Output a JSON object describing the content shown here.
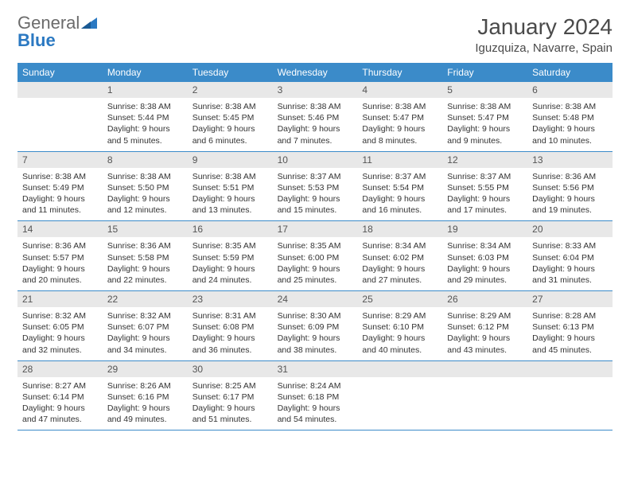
{
  "logo": {
    "word1": "General",
    "word2": "Blue"
  },
  "title": "January 2024",
  "location": "Iguzquiza, Navarre, Spain",
  "colors": {
    "header_bg": "#3b8bc9",
    "header_text": "#ffffff",
    "daynum_bg": "#e8e8e8",
    "body_text": "#333333",
    "rule": "#3b8bc9",
    "logo_gray": "#6b6b6b",
    "logo_blue": "#2b79c2"
  },
  "typography": {
    "title_fontsize": 28,
    "location_fontsize": 15,
    "dayheader_fontsize": 12,
    "daynum_fontsize": 12,
    "cell_fontsize": 10.5
  },
  "layout": {
    "columns": 7,
    "rows": 5
  },
  "day_names": [
    "Sunday",
    "Monday",
    "Tuesday",
    "Wednesday",
    "Thursday",
    "Friday",
    "Saturday"
  ],
  "weeks": [
    [
      {
        "n": "",
        "empty": true
      },
      {
        "n": "1",
        "sunrise": "Sunrise: 8:38 AM",
        "sunset": "Sunset: 5:44 PM",
        "dl1": "Daylight: 9 hours",
        "dl2": "and 5 minutes."
      },
      {
        "n": "2",
        "sunrise": "Sunrise: 8:38 AM",
        "sunset": "Sunset: 5:45 PM",
        "dl1": "Daylight: 9 hours",
        "dl2": "and 6 minutes."
      },
      {
        "n": "3",
        "sunrise": "Sunrise: 8:38 AM",
        "sunset": "Sunset: 5:46 PM",
        "dl1": "Daylight: 9 hours",
        "dl2": "and 7 minutes."
      },
      {
        "n": "4",
        "sunrise": "Sunrise: 8:38 AM",
        "sunset": "Sunset: 5:47 PM",
        "dl1": "Daylight: 9 hours",
        "dl2": "and 8 minutes."
      },
      {
        "n": "5",
        "sunrise": "Sunrise: 8:38 AM",
        "sunset": "Sunset: 5:47 PM",
        "dl1": "Daylight: 9 hours",
        "dl2": "and 9 minutes."
      },
      {
        "n": "6",
        "sunrise": "Sunrise: 8:38 AM",
        "sunset": "Sunset: 5:48 PM",
        "dl1": "Daylight: 9 hours",
        "dl2": "and 10 minutes."
      }
    ],
    [
      {
        "n": "7",
        "sunrise": "Sunrise: 8:38 AM",
        "sunset": "Sunset: 5:49 PM",
        "dl1": "Daylight: 9 hours",
        "dl2": "and 11 minutes."
      },
      {
        "n": "8",
        "sunrise": "Sunrise: 8:38 AM",
        "sunset": "Sunset: 5:50 PM",
        "dl1": "Daylight: 9 hours",
        "dl2": "and 12 minutes."
      },
      {
        "n": "9",
        "sunrise": "Sunrise: 8:38 AM",
        "sunset": "Sunset: 5:51 PM",
        "dl1": "Daylight: 9 hours",
        "dl2": "and 13 minutes."
      },
      {
        "n": "10",
        "sunrise": "Sunrise: 8:37 AM",
        "sunset": "Sunset: 5:53 PM",
        "dl1": "Daylight: 9 hours",
        "dl2": "and 15 minutes."
      },
      {
        "n": "11",
        "sunrise": "Sunrise: 8:37 AM",
        "sunset": "Sunset: 5:54 PM",
        "dl1": "Daylight: 9 hours",
        "dl2": "and 16 minutes."
      },
      {
        "n": "12",
        "sunrise": "Sunrise: 8:37 AM",
        "sunset": "Sunset: 5:55 PM",
        "dl1": "Daylight: 9 hours",
        "dl2": "and 17 minutes."
      },
      {
        "n": "13",
        "sunrise": "Sunrise: 8:36 AM",
        "sunset": "Sunset: 5:56 PM",
        "dl1": "Daylight: 9 hours",
        "dl2": "and 19 minutes."
      }
    ],
    [
      {
        "n": "14",
        "sunrise": "Sunrise: 8:36 AM",
        "sunset": "Sunset: 5:57 PM",
        "dl1": "Daylight: 9 hours",
        "dl2": "and 20 minutes."
      },
      {
        "n": "15",
        "sunrise": "Sunrise: 8:36 AM",
        "sunset": "Sunset: 5:58 PM",
        "dl1": "Daylight: 9 hours",
        "dl2": "and 22 minutes."
      },
      {
        "n": "16",
        "sunrise": "Sunrise: 8:35 AM",
        "sunset": "Sunset: 5:59 PM",
        "dl1": "Daylight: 9 hours",
        "dl2": "and 24 minutes."
      },
      {
        "n": "17",
        "sunrise": "Sunrise: 8:35 AM",
        "sunset": "Sunset: 6:00 PM",
        "dl1": "Daylight: 9 hours",
        "dl2": "and 25 minutes."
      },
      {
        "n": "18",
        "sunrise": "Sunrise: 8:34 AM",
        "sunset": "Sunset: 6:02 PM",
        "dl1": "Daylight: 9 hours",
        "dl2": "and 27 minutes."
      },
      {
        "n": "19",
        "sunrise": "Sunrise: 8:34 AM",
        "sunset": "Sunset: 6:03 PM",
        "dl1": "Daylight: 9 hours",
        "dl2": "and 29 minutes."
      },
      {
        "n": "20",
        "sunrise": "Sunrise: 8:33 AM",
        "sunset": "Sunset: 6:04 PM",
        "dl1": "Daylight: 9 hours",
        "dl2": "and 31 minutes."
      }
    ],
    [
      {
        "n": "21",
        "sunrise": "Sunrise: 8:32 AM",
        "sunset": "Sunset: 6:05 PM",
        "dl1": "Daylight: 9 hours",
        "dl2": "and 32 minutes."
      },
      {
        "n": "22",
        "sunrise": "Sunrise: 8:32 AM",
        "sunset": "Sunset: 6:07 PM",
        "dl1": "Daylight: 9 hours",
        "dl2": "and 34 minutes."
      },
      {
        "n": "23",
        "sunrise": "Sunrise: 8:31 AM",
        "sunset": "Sunset: 6:08 PM",
        "dl1": "Daylight: 9 hours",
        "dl2": "and 36 minutes."
      },
      {
        "n": "24",
        "sunrise": "Sunrise: 8:30 AM",
        "sunset": "Sunset: 6:09 PM",
        "dl1": "Daylight: 9 hours",
        "dl2": "and 38 minutes."
      },
      {
        "n": "25",
        "sunrise": "Sunrise: 8:29 AM",
        "sunset": "Sunset: 6:10 PM",
        "dl1": "Daylight: 9 hours",
        "dl2": "and 40 minutes."
      },
      {
        "n": "26",
        "sunrise": "Sunrise: 8:29 AM",
        "sunset": "Sunset: 6:12 PM",
        "dl1": "Daylight: 9 hours",
        "dl2": "and 43 minutes."
      },
      {
        "n": "27",
        "sunrise": "Sunrise: 8:28 AM",
        "sunset": "Sunset: 6:13 PM",
        "dl1": "Daylight: 9 hours",
        "dl2": "and 45 minutes."
      }
    ],
    [
      {
        "n": "28",
        "sunrise": "Sunrise: 8:27 AM",
        "sunset": "Sunset: 6:14 PM",
        "dl1": "Daylight: 9 hours",
        "dl2": "and 47 minutes."
      },
      {
        "n": "29",
        "sunrise": "Sunrise: 8:26 AM",
        "sunset": "Sunset: 6:16 PM",
        "dl1": "Daylight: 9 hours",
        "dl2": "and 49 minutes."
      },
      {
        "n": "30",
        "sunrise": "Sunrise: 8:25 AM",
        "sunset": "Sunset: 6:17 PM",
        "dl1": "Daylight: 9 hours",
        "dl2": "and 51 minutes."
      },
      {
        "n": "31",
        "sunrise": "Sunrise: 8:24 AM",
        "sunset": "Sunset: 6:18 PM",
        "dl1": "Daylight: 9 hours",
        "dl2": "and 54 minutes."
      },
      {
        "n": "",
        "empty": true
      },
      {
        "n": "",
        "empty": true
      },
      {
        "n": "",
        "empty": true
      }
    ]
  ]
}
